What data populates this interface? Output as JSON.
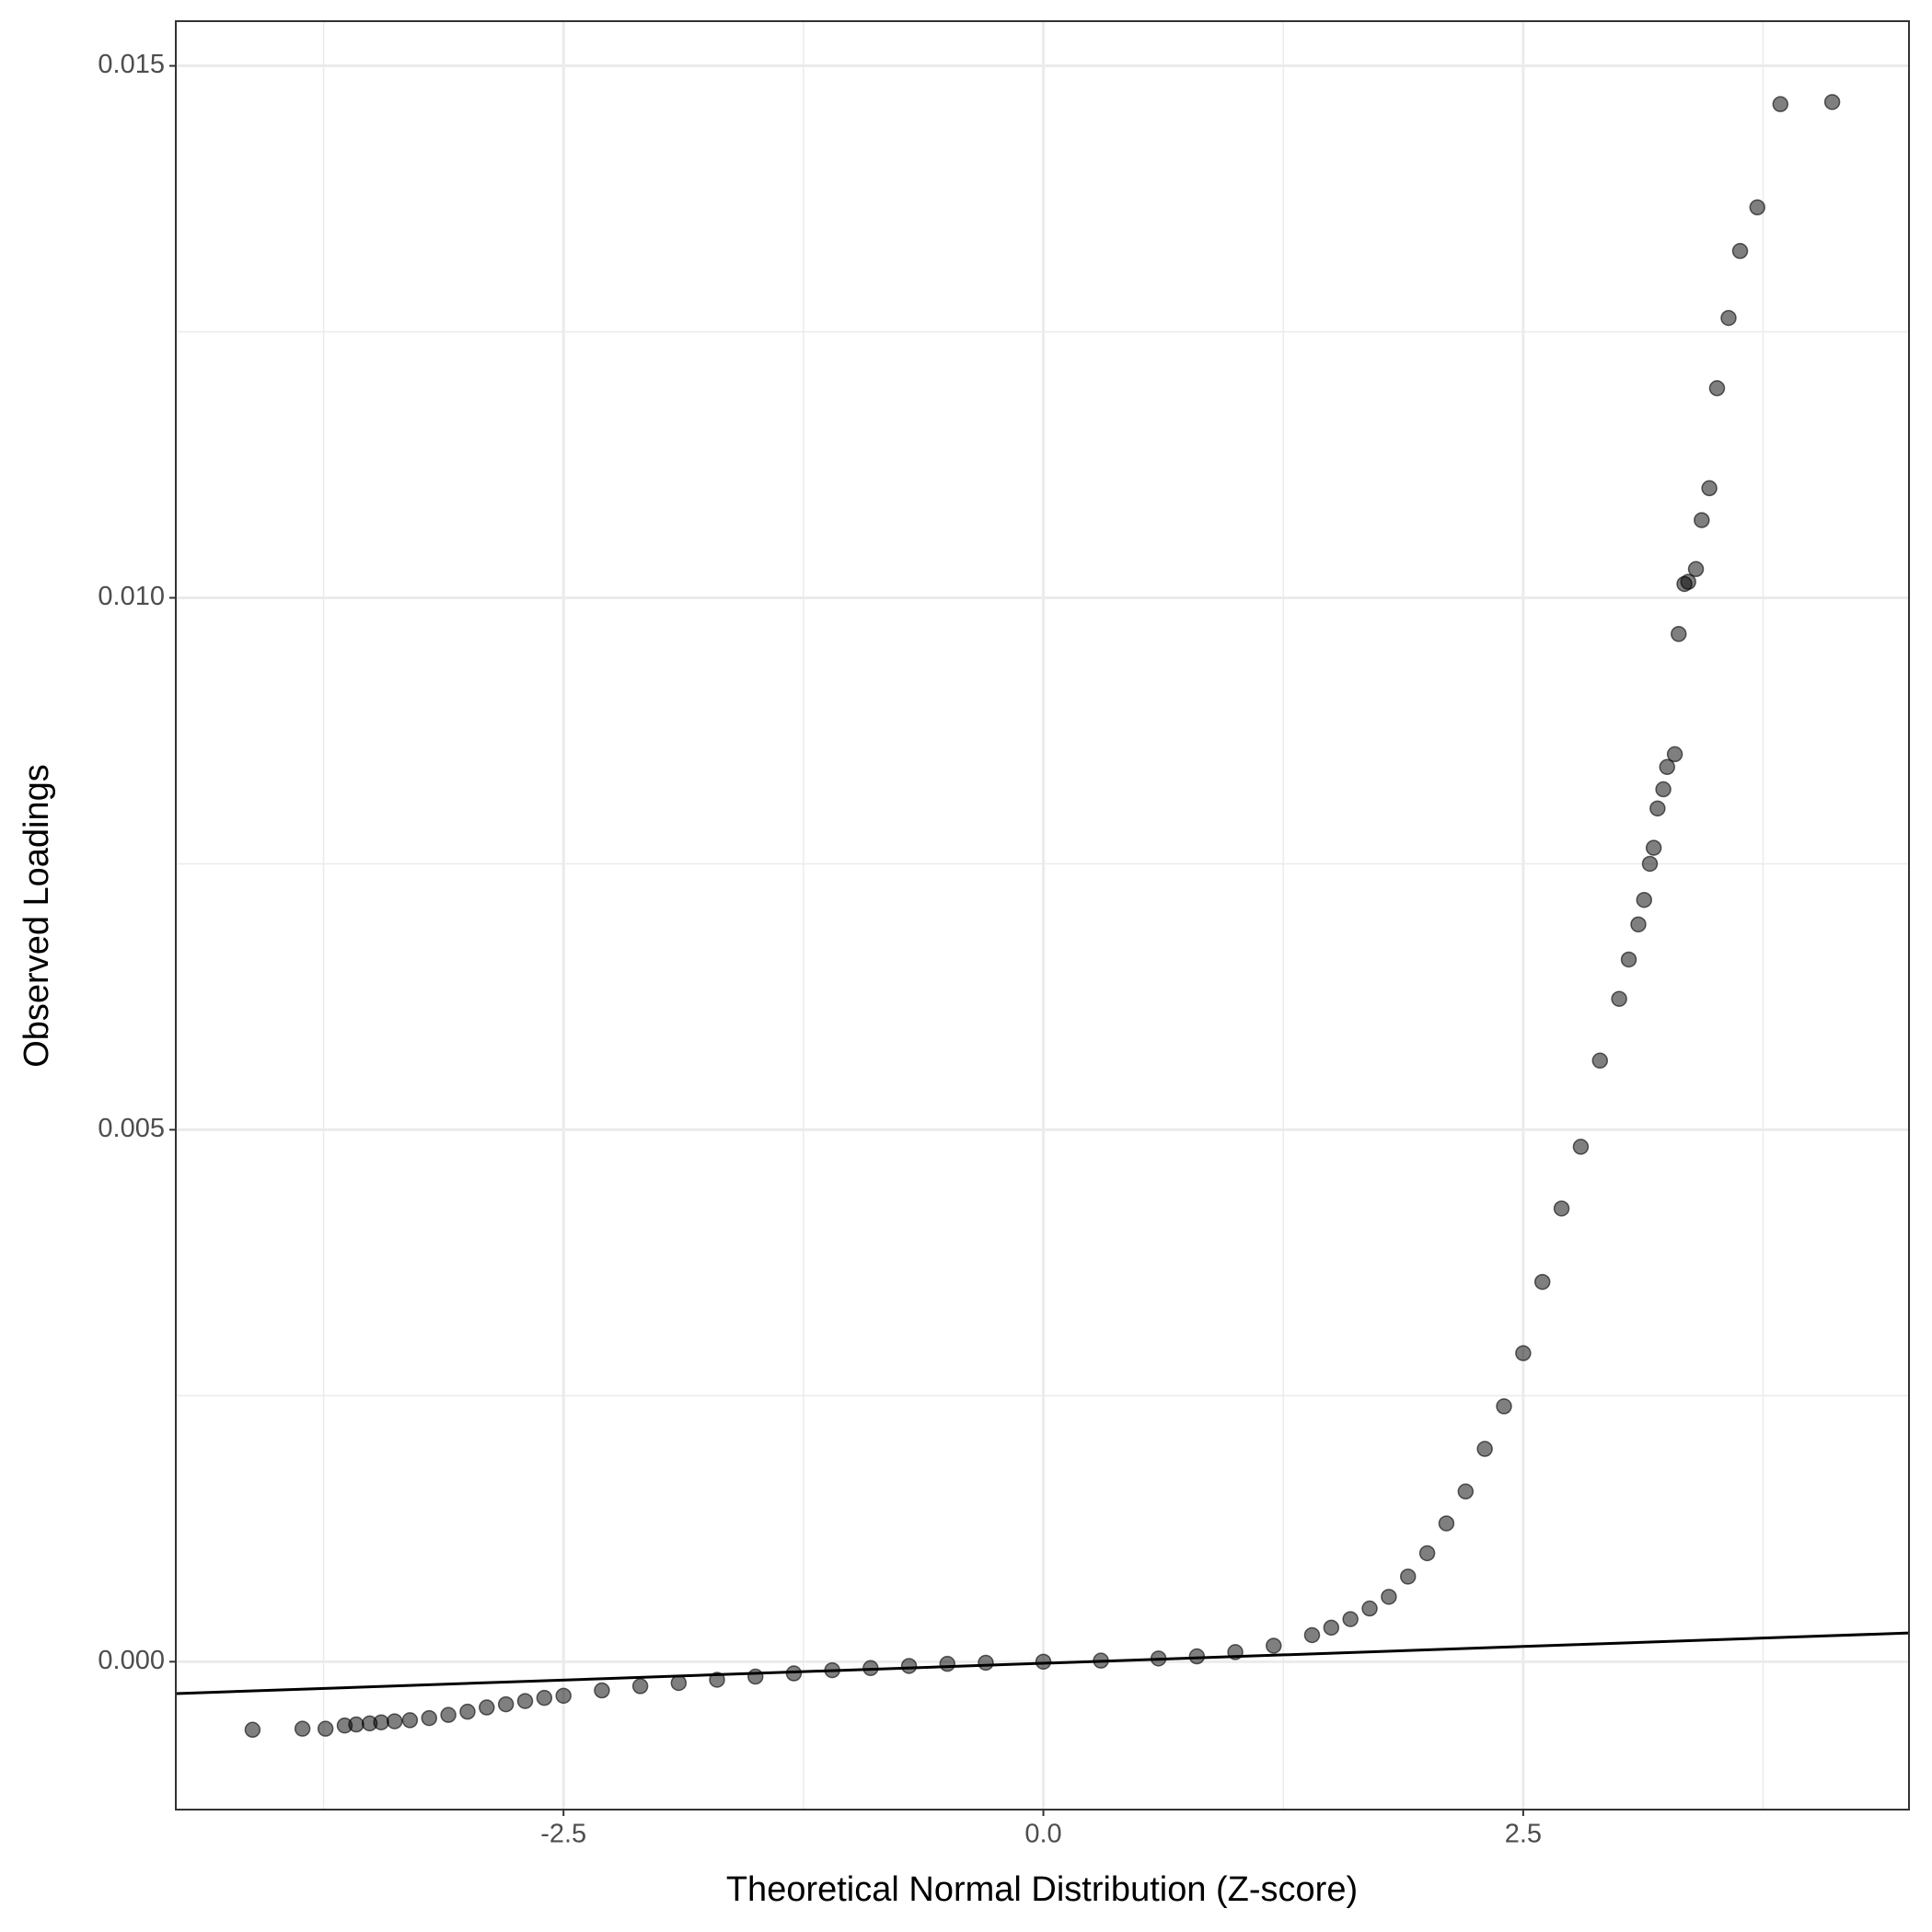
{
  "chart_data": {
    "type": "scatter",
    "x_label": "Theoretical Normal Distribution (Z-score)",
    "y_label": "Observed Loadings",
    "xlim": [
      -4.52,
      4.51
    ],
    "ylim": [
      -0.00139,
      0.01542
    ],
    "xticks": [
      -2.5,
      {
        "value": 0,
        "label": "0.0"
      },
      2.5
    ],
    "yticks": [
      {
        "value": 0,
        "label": "0.000"
      },
      0.005,
      {
        "value": 0.01,
        "label": "0.010"
      },
      0.015
    ],
    "minor_xticks": [
      -3.75,
      -1.25,
      1.25,
      3.75
    ],
    "minor_yticks": [
      0.0025,
      0.0075,
      0.0125
    ],
    "grid": true,
    "color": "#000000",
    "x": [
      -4.12,
      -3.86,
      -3.74,
      -3.64,
      -3.58,
      -3.51,
      -3.45,
      -3.38,
      -3.3,
      -3.2,
      -3.1,
      -3.0,
      -2.9,
      -2.8,
      -2.7,
      -2.6,
      -2.5,
      -2.3,
      -2.1,
      -1.9,
      -1.7,
      -1.5,
      -1.3,
      -1.1,
      -0.9,
      -0.7,
      -0.5,
      -0.3,
      0,
      0.3,
      0.6,
      0.8,
      1.0,
      1.2,
      1.4,
      1.5,
      1.6,
      1.7,
      1.8,
      1.9,
      2.0,
      2.1,
      2.2,
      2.3,
      2.4,
      2.5,
      2.6,
      2.7,
      2.8,
      2.9,
      3.0,
      3.05,
      3.1,
      3.13,
      3.16,
      3.18,
      3.2,
      3.23,
      3.25,
      3.29,
      3.31,
      3.34,
      3.36,
      3.4,
      3.43,
      3.47,
      3.51,
      3.57,
      3.63,
      3.72,
      3.84,
      4.11
    ],
    "values": [
      -0.00064,
      -0.00063,
      -0.00063,
      -0.0006,
      -0.00059,
      -0.00058,
      -0.00057,
      -0.00056,
      -0.00055,
      -0.00053,
      -0.0005,
      -0.00047,
      -0.00043,
      -0.0004,
      -0.00037,
      -0.00034,
      -0.00032,
      -0.00027,
      -0.00023,
      -0.0002,
      -0.00017,
      -0.00014,
      -0.00011,
      -8e-05,
      -6e-05,
      -4e-05,
      -2e-05,
      -1e-05,
      0,
      1e-05,
      3e-05,
      5e-05,
      9e-05,
      0.00015,
      0.00025,
      0.00032,
      0.0004,
      0.0005,
      0.00061,
      0.0008,
      0.00102,
      0.0013,
      0.0016,
      0.002,
      0.0024,
      0.0029,
      0.00357,
      0.00426,
      0.00484,
      0.00565,
      0.00623,
      0.0066,
      0.00693,
      0.00716,
      0.0075,
      0.00765,
      0.00802,
      0.0082,
      0.00841,
      0.00853,
      0.00966,
      0.01013,
      0.01015,
      0.01027,
      0.01073,
      0.01103,
      0.01197,
      0.01263,
      0.01326,
      0.01367,
      0.01464,
      0.01466
    ],
    "reference_line": {
      "x": [
        -4.52,
        4.51
      ],
      "y": [
        -0.0003,
        0.00027
      ],
      "color": "#000000"
    }
  }
}
